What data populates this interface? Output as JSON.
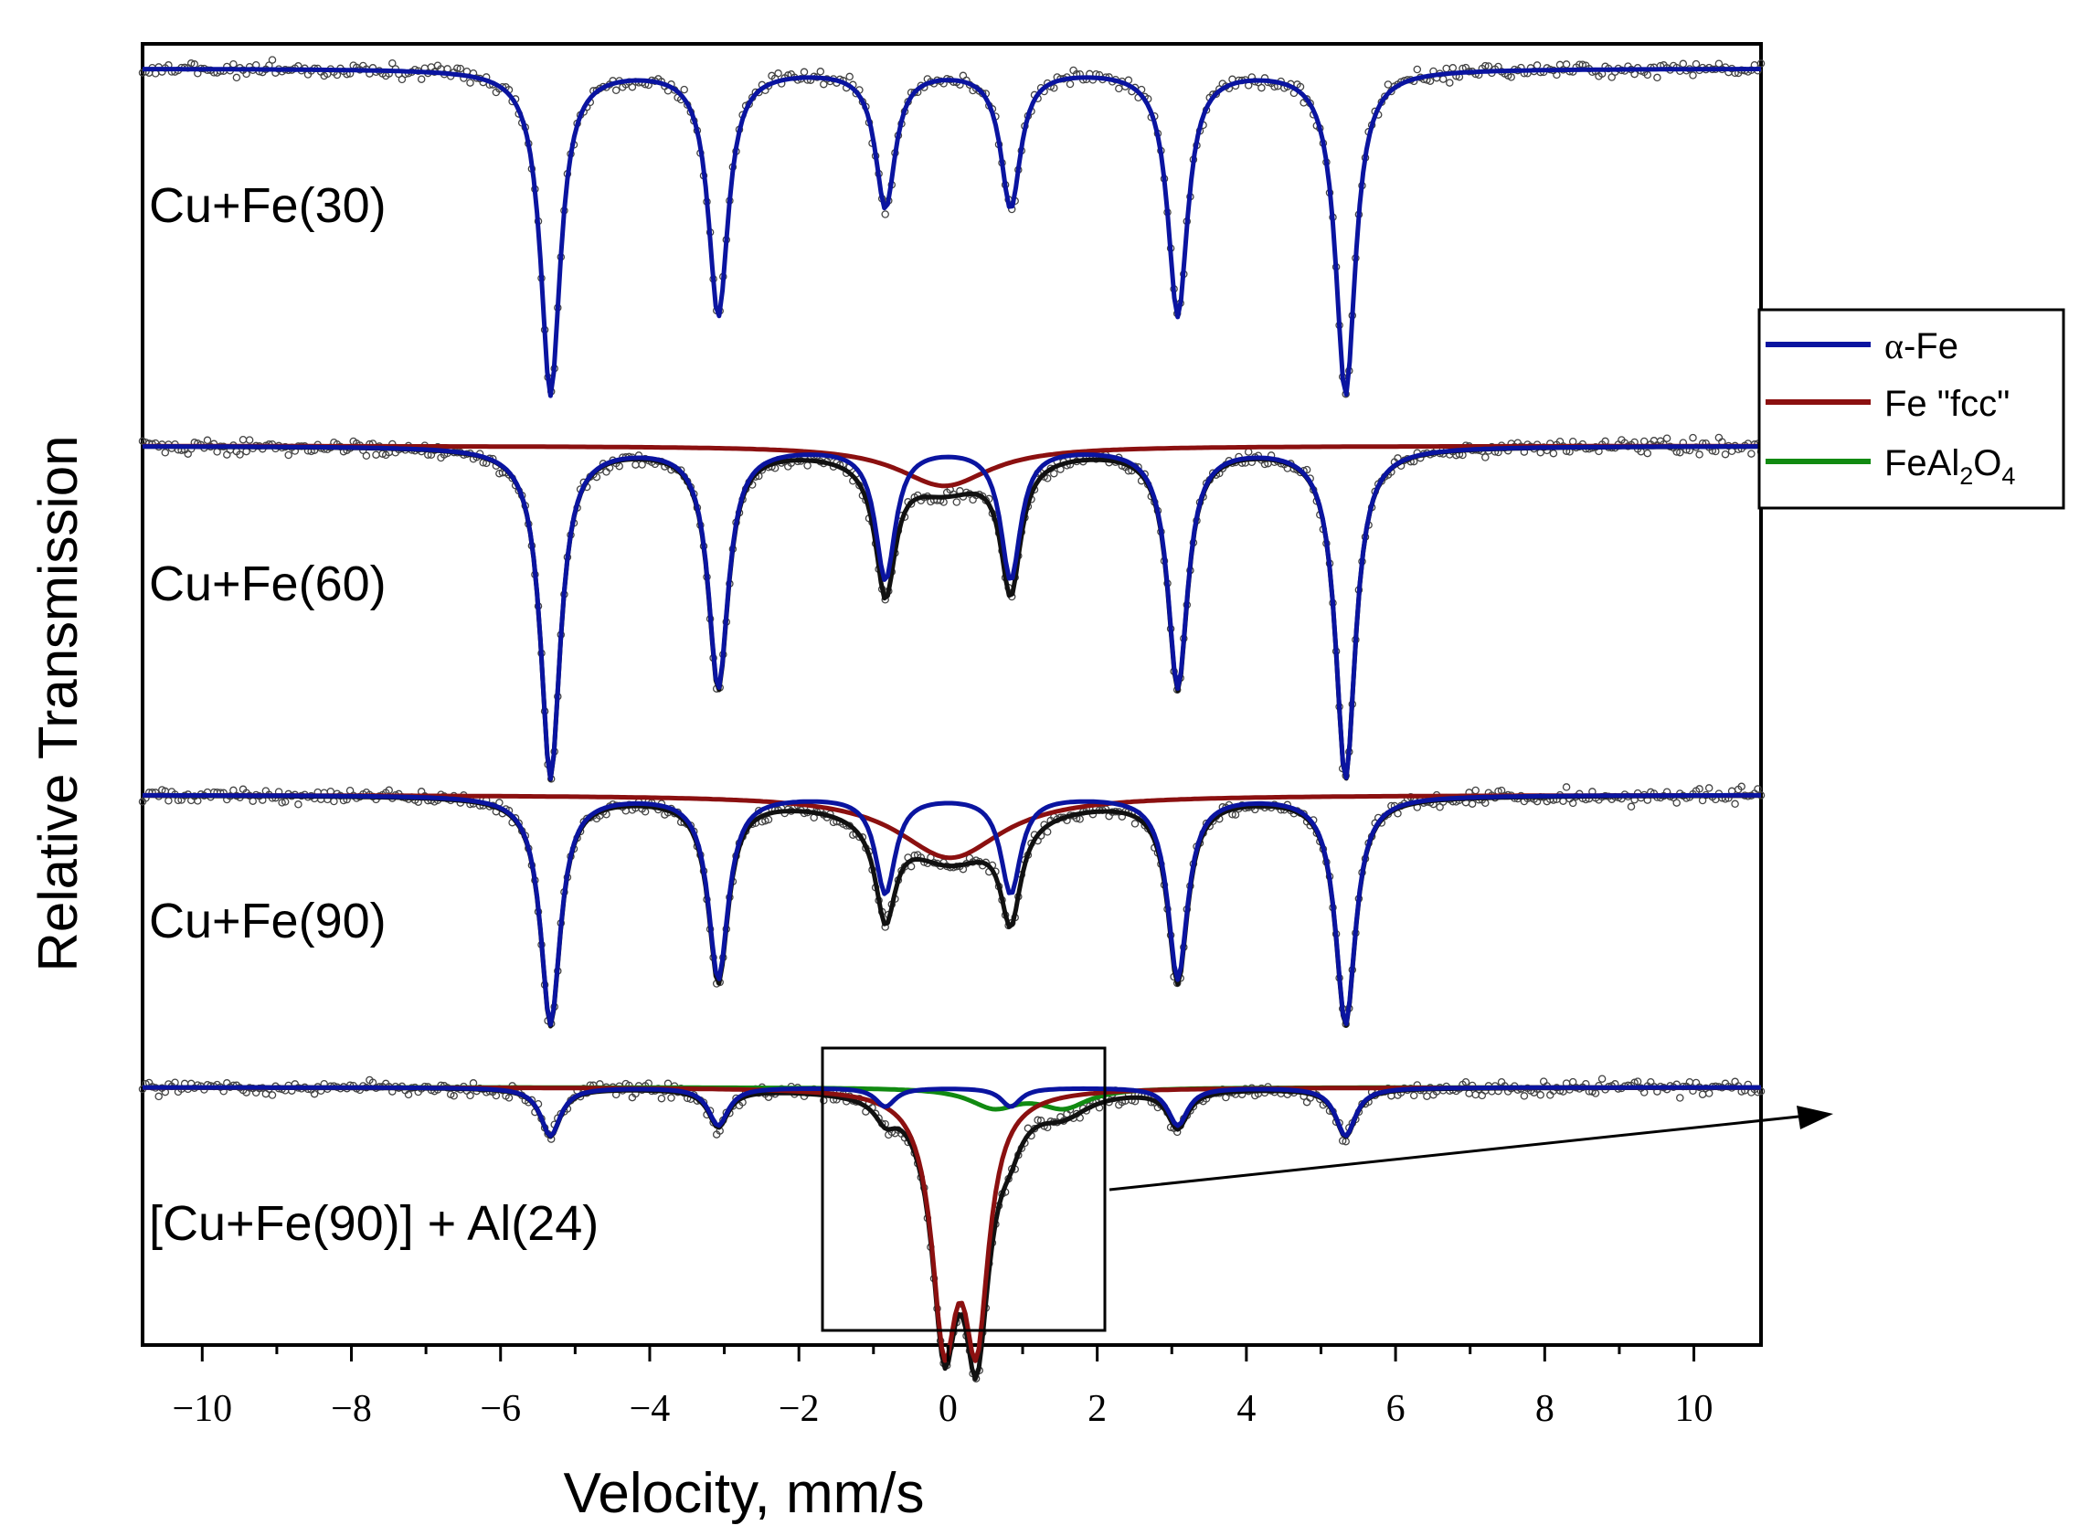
{
  "chart_data": {
    "type": "line",
    "title": "",
    "xlabel": "Velocity, mm/s",
    "ylabel": "Relative Transmission",
    "xlim": [
      -10.8,
      10.9
    ],
    "x_ticks": [
      -10,
      -8,
      -6,
      -4,
      -2,
      0,
      2,
      4,
      6,
      8,
      10
    ],
    "x_tick_labels": [
      "−10",
      "−8",
      "−6",
      "−4",
      "−2",
      "0",
      "2",
      "4",
      "6",
      "8",
      "10"
    ],
    "y_ticks_shown": false,
    "legend": {
      "position": "right",
      "entries": [
        {
          "key": "alpha",
          "label_prefix": "α",
          "label_main": "-Fe",
          "color": "#0a14a0"
        },
        {
          "key": "fcc",
          "label": "Fe \"fcc\"",
          "color": "#8b1010"
        },
        {
          "key": "feal",
          "label_parts": [
            "FeAl",
            "2",
            "O",
            "4"
          ],
          "color": "#118a11"
        }
      ]
    },
    "colors": {
      "alpha_fe": "#0a14a0",
      "fe_fcc": "#8b1010",
      "feal2o4": "#118a11",
      "total_fit": "#111111",
      "points": "#444444"
    },
    "spectra": [
      {
        "name": "Cu+Fe(30)",
        "alpha_fe": {
          "line_positions": [
            -5.33,
            -3.08,
            -0.84,
            0.84,
            3.08,
            5.33
          ],
          "depths": [
            0.57,
            0.43,
            0.24,
            0.24,
            0.43,
            0.57
          ],
          "hwhm": 0.16
        }
      },
      {
        "name": "Cu+Fe(60)",
        "alpha_fe": {
          "line_positions": [
            -5.33,
            -3.08,
            -0.84,
            0.84,
            3.08,
            5.33
          ],
          "depths": [
            0.58,
            0.42,
            0.23,
            0.23,
            0.42,
            0.58
          ],
          "hwhm": 0.16
        },
        "fe_fcc": {
          "center": -0.05,
          "depth": 0.07,
          "hwhm": 0.75
        }
      },
      {
        "name": "Cu+Fe(90)",
        "alpha_fe": {
          "line_positions": [
            -5.33,
            -3.08,
            -0.84,
            0.84,
            3.08,
            5.33
          ],
          "depths": [
            0.4,
            0.32,
            0.17,
            0.17,
            0.32,
            0.4
          ],
          "hwhm": 0.16
        },
        "fe_fcc": {
          "center": 0.03,
          "depth": 0.11,
          "hwhm": 0.85
        }
      },
      {
        "name": "[Cu+Fe(90)] + Al(24)",
        "alpha_fe": {
          "line_positions": [
            -5.33,
            -3.08,
            -0.84,
            0.84,
            3.08,
            5.33
          ],
          "depths": [
            0.115,
            0.09,
            0.045,
            0.045,
            0.09,
            0.115
          ],
          "hwhm": 0.16
        },
        "fe_fcc": {
          "line_positions": [
            -0.05,
            0.38
          ],
          "depths": [
            0.55,
            0.55
          ],
          "hwhm": 0.2
        },
        "feal2o4": {
          "line_positions": [
            0.62,
            1.55
          ],
          "depths": [
            0.045,
            0.045
          ],
          "hwhm": 0.4
        }
      }
    ]
  }
}
